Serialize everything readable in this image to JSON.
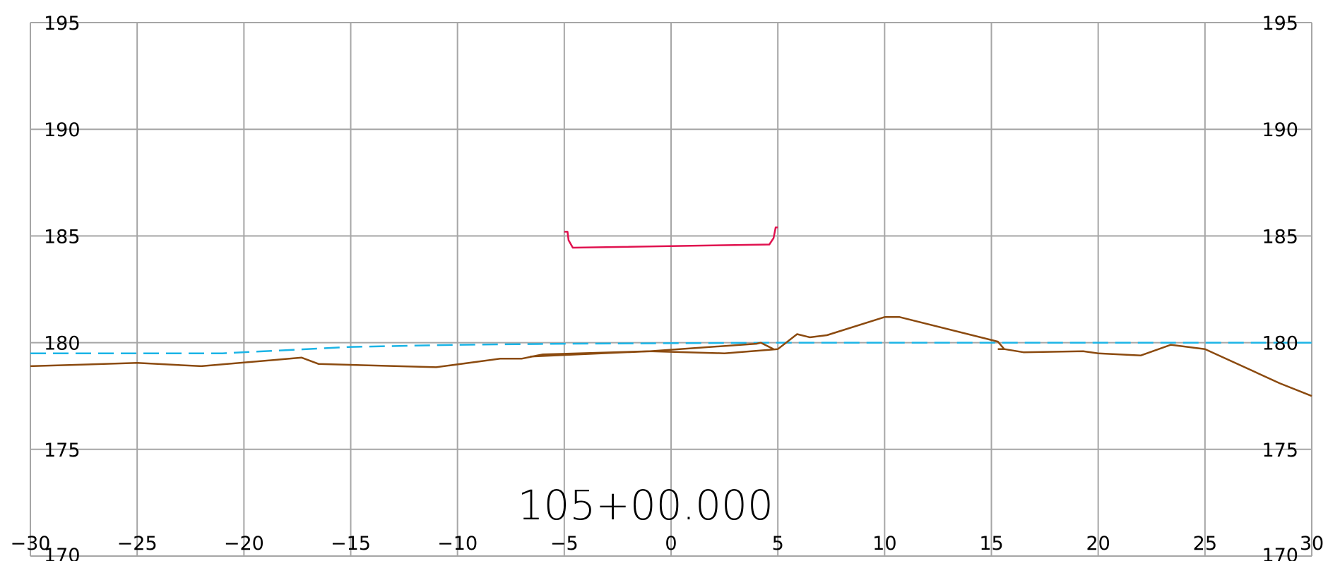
{
  "chart_data": {
    "type": "line",
    "title": "105+00.000",
    "xlabel": "",
    "ylabel": "",
    "xlim": [
      -30,
      30
    ],
    "ylim": [
      170,
      195
    ],
    "x_ticks": [
      -30,
      -25,
      -20,
      -15,
      -10,
      -5,
      0,
      5,
      10,
      15,
      20,
      25,
      30
    ],
    "x_tick_labels": [
      "−30",
      "−25",
      "−20",
      "−15",
      "−10",
      "−5",
      "0",
      "5",
      "10",
      "15",
      "20",
      "25",
      "30"
    ],
    "y_ticks": [
      170,
      175,
      180,
      185,
      190,
      195
    ],
    "y_tick_labels": [
      "170",
      "175",
      "180",
      "185",
      "190",
      "195"
    ],
    "grid": true,
    "series": [
      {
        "color": "#1ab4e6",
        "dash": true,
        "points": [
          [
            -30,
            179.5
          ],
          [
            -21,
            179.5
          ],
          [
            -15,
            179.8
          ],
          [
            -10,
            179.9
          ],
          [
            -5,
            179.95
          ],
          [
            5,
            180.0
          ],
          [
            30,
            180.0
          ]
        ]
      },
      {
        "color": "#8b4a0f",
        "dash": false,
        "points": [
          [
            -30,
            178.9
          ],
          [
            -25,
            179.05
          ],
          [
            -22,
            178.9
          ],
          [
            -17.3,
            179.3
          ],
          [
            -16.5,
            179.0
          ],
          [
            -11,
            178.85
          ],
          [
            -8,
            179.25
          ],
          [
            -7,
            179.25
          ],
          [
            -6,
            179.45
          ],
          [
            -1,
            179.6
          ],
          [
            2.5,
            179.5
          ],
          [
            5,
            179.7
          ],
          [
            5.9,
            180.4
          ],
          [
            6.5,
            180.25
          ],
          [
            7.3,
            180.35
          ],
          [
            10,
            181.2
          ],
          [
            10.7,
            181.2
          ],
          [
            15.3,
            180.05
          ],
          [
            15.6,
            179.7
          ],
          [
            16.5,
            179.55
          ],
          [
            19.3,
            179.6
          ],
          [
            20,
            179.5
          ],
          [
            22,
            179.4
          ],
          [
            23.4,
            179.9
          ],
          [
            25,
            179.7
          ],
          [
            28.5,
            178.1
          ],
          [
            30,
            177.5
          ]
        ]
      },
      {
        "color": "#8b4a0f",
        "dash": false,
        "points": [
          [
            -6.6,
            179.35
          ],
          [
            -1,
            179.6
          ],
          [
            4,
            179.95
          ],
          [
            4.2,
            180.0
          ],
          [
            4.8,
            179.7
          ]
        ]
      },
      {
        "color": "#8b4a0f",
        "dash": false,
        "points": [
          [
            15.3,
            179.7
          ],
          [
            15.6,
            179.7
          ]
        ]
      },
      {
        "color": "#e0124f",
        "dash": false,
        "points": [
          [
            -5,
            185.2
          ],
          [
            -4.85,
            185.2
          ],
          [
            -4.8,
            184.8
          ],
          [
            -4.6,
            184.45
          ],
          [
            4.6,
            184.6
          ],
          [
            4.8,
            184.9
          ],
          [
            4.9,
            185.4
          ],
          [
            5,
            185.4
          ]
        ]
      }
    ]
  }
}
